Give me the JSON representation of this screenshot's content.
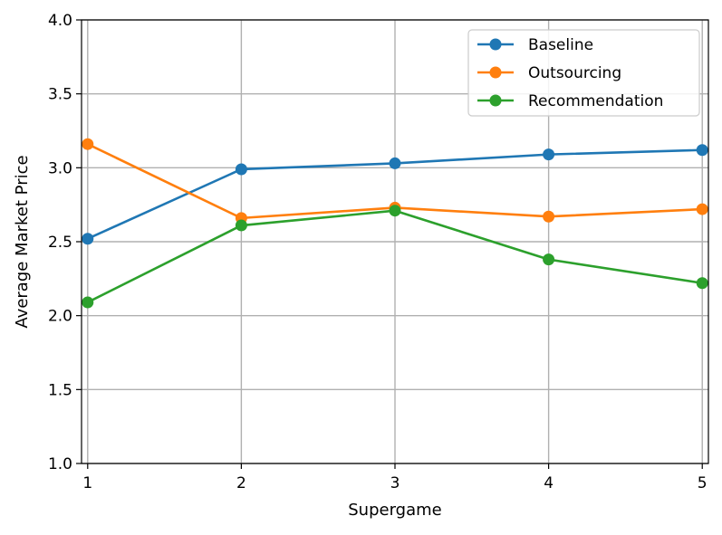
{
  "chart_data": {
    "type": "line",
    "title": "",
    "xlabel": "Supergame",
    "ylabel": "Average Market Price",
    "x": [
      1,
      2,
      3,
      4,
      5
    ],
    "xlim": [
      0.96,
      5.04
    ],
    "ylim": [
      1.0,
      4.0
    ],
    "xticks": [
      1,
      2,
      3,
      4,
      5
    ],
    "yticks": [
      1.0,
      1.5,
      2.0,
      2.5,
      3.0,
      3.5,
      4.0
    ],
    "ytick_labels": [
      "1.0",
      "1.5",
      "2.0",
      "2.5",
      "3.0",
      "3.5",
      "4.0"
    ],
    "xtick_labels": [
      "1",
      "2",
      "3",
      "4",
      "5"
    ],
    "grid": true,
    "legend_position": "top-right",
    "series": [
      {
        "name": "Baseline",
        "color": "#1f77b4",
        "values": [
          2.52,
          2.99,
          3.03,
          3.09,
          3.12
        ]
      },
      {
        "name": "Outsourcing",
        "color": "#ff7f0e",
        "values": [
          3.16,
          2.66,
          2.73,
          2.67,
          2.72
        ]
      },
      {
        "name": "Recommendation",
        "color": "#2ca02c",
        "values": [
          2.09,
          2.61,
          2.71,
          2.38,
          2.22
        ]
      }
    ]
  }
}
